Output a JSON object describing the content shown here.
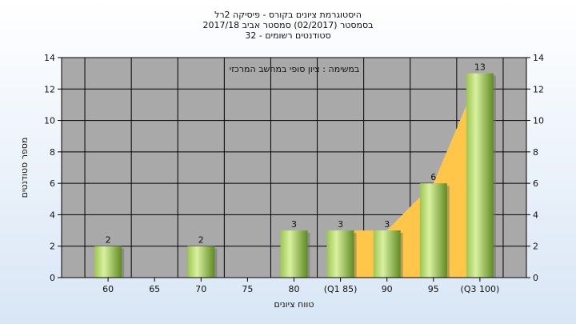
{
  "chart_data": {
    "type": "bar",
    "title_lines": [
      "היסטוגרמת ציונים בקורס - פיסיקה 2רל",
      "בסמסטר  (02/2017)  סמסטר אביב 2017/18",
      "סטודנטים רשומים - 32"
    ],
    "annotation": "במשימה : ציון סופי במחשב המרכזי",
    "xlabel": "טווח ציונים",
    "ylabel": "מספר סטודנטים",
    "categories": [
      "60",
      "65",
      "70",
      "75",
      "80",
      "(Q1 85)",
      "90",
      "95",
      "(Q3 100)"
    ],
    "values": [
      2,
      0,
      2,
      0,
      3,
      3,
      3,
      6,
      13
    ],
    "data_labels": [
      "2",
      "",
      "2",
      "",
      "3",
      "3",
      "3",
      "6",
      "13"
    ],
    "interquartile_band": {
      "from_category": 5,
      "to_category": 8
    },
    "ylim": [
      0,
      14
    ],
    "yticks": [
      0,
      2,
      4,
      6,
      8,
      10,
      12,
      14
    ],
    "grid": true,
    "colors": {
      "plot_bg": "#a9a9a9",
      "bar_light": "#d4ec98",
      "bar_dark": "#6f9a2c",
      "band": "#ffc64a",
      "grid": "#000000"
    }
  }
}
